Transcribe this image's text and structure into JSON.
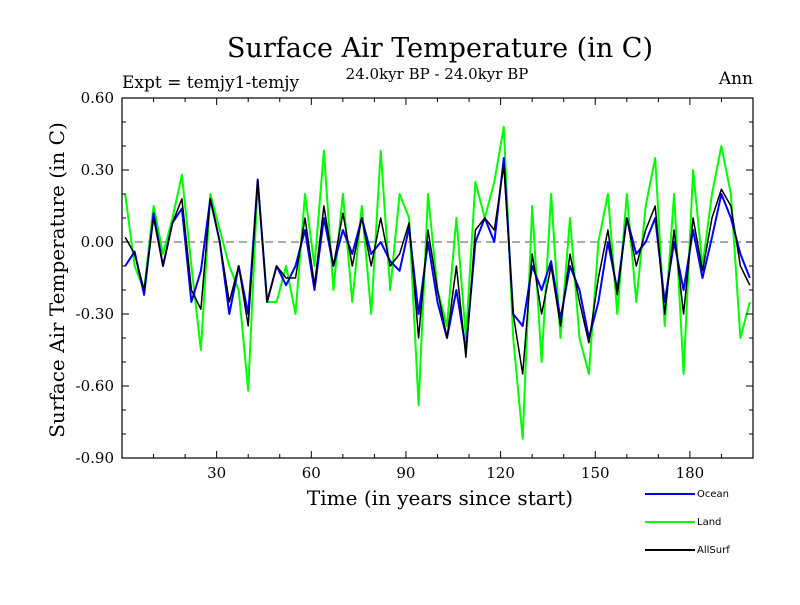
{
  "chart_data": {
    "type": "line",
    "title": "Surface Air Temperature (in C)",
    "subtitle": "24.0kyr BP - 24.0kyr BP",
    "left_label": "Expt = temjy1-temjy",
    "right_label": "Ann",
    "xlabel": "Time (in years since start)",
    "ylabel": "Surface Air Temperature (in C)",
    "xlim": [
      0,
      200
    ],
    "ylim": [
      -0.9,
      0.6
    ],
    "xticks": [
      30,
      60,
      90,
      120,
      150,
      180
    ],
    "xtick_labels": [
      "30",
      "60",
      "90",
      "120",
      "150",
      "180"
    ],
    "yticks": [
      0.6,
      0.3,
      0.0,
      -0.3,
      -0.6,
      -0.9
    ],
    "ytick_labels": [
      "0.60",
      "0.30",
      "0.00",
      "-0.30",
      "-0.60",
      "-0.90"
    ],
    "reference_line": 0.0,
    "legend_position": "bottom-right",
    "x": [
      1,
      4,
      7,
      10,
      13,
      16,
      19,
      22,
      25,
      28,
      31,
      34,
      37,
      40,
      43,
      46,
      49,
      52,
      55,
      58,
      61,
      64,
      67,
      70,
      73,
      76,
      79,
      82,
      85,
      88,
      91,
      94,
      97,
      100,
      103,
      106,
      109,
      112,
      115,
      118,
      121,
      124,
      127,
      130,
      133,
      136,
      139,
      142,
      145,
      148,
      151,
      154,
      157,
      160,
      163,
      166,
      169,
      172,
      175,
      178,
      181,
      184,
      187,
      190,
      193,
      196,
      199
    ],
    "series": [
      {
        "name": "Ocean",
        "color": "#0000ff",
        "values": [
          -0.1,
          -0.04,
          -0.22,
          0.12,
          -0.1,
          0.08,
          0.14,
          -0.25,
          -0.12,
          0.18,
          0.0,
          -0.3,
          -0.1,
          -0.3,
          0.26,
          -0.25,
          -0.1,
          -0.18,
          -0.1,
          0.05,
          -0.2,
          0.1,
          -0.1,
          0.05,
          -0.05,
          0.1,
          -0.05,
          0.0,
          -0.08,
          -0.12,
          0.06,
          -0.3,
          0.0,
          -0.25,
          -0.4,
          -0.2,
          -0.45,
          0.0,
          0.1,
          0.0,
          0.35,
          -0.3,
          -0.35,
          -0.1,
          -0.2,
          -0.08,
          -0.32,
          -0.1,
          -0.2,
          -0.4,
          -0.25,
          0.0,
          -0.2,
          0.1,
          -0.05,
          0.0,
          0.1,
          -0.25,
          0.0,
          -0.2,
          0.05,
          -0.15,
          0.02,
          0.2,
          0.1,
          -0.05,
          -0.15
        ]
      },
      {
        "name": "Land",
        "color": "#00ff00",
        "values": [
          0.2,
          -0.1,
          -0.2,
          0.15,
          -0.05,
          0.1,
          0.28,
          -0.1,
          -0.45,
          0.2,
          0.05,
          -0.1,
          -0.2,
          -0.62,
          0.25,
          -0.25,
          -0.25,
          -0.1,
          -0.3,
          0.2,
          -0.1,
          0.38,
          -0.2,
          0.2,
          -0.25,
          0.15,
          -0.3,
          0.38,
          -0.2,
          0.2,
          0.1,
          -0.68,
          0.2,
          -0.2,
          -0.35,
          0.1,
          -0.4,
          0.25,
          0.1,
          0.25,
          0.48,
          -0.4,
          -0.82,
          0.15,
          -0.5,
          0.2,
          -0.4,
          0.1,
          -0.4,
          -0.55,
          0.0,
          0.2,
          -0.3,
          0.2,
          -0.25,
          0.15,
          0.35,
          -0.35,
          0.2,
          -0.55,
          0.3,
          -0.1,
          0.2,
          0.4,
          0.2,
          -0.4,
          -0.25
        ]
      },
      {
        "name": "AllSurf",
        "color": "#000000",
        "values": [
          0.02,
          -0.05,
          -0.2,
          0.1,
          -0.1,
          0.08,
          0.18,
          -0.2,
          -0.28,
          0.18,
          0.0,
          -0.25,
          -0.1,
          -0.35,
          0.26,
          -0.25,
          -0.1,
          -0.15,
          -0.15,
          0.1,
          -0.18,
          0.15,
          -0.1,
          0.12,
          -0.1,
          0.1,
          -0.1,
          0.1,
          -0.1,
          -0.05,
          0.08,
          -0.4,
          0.05,
          -0.2,
          -0.4,
          -0.1,
          -0.48,
          0.05,
          0.1,
          0.05,
          0.32,
          -0.3,
          -0.55,
          -0.05,
          -0.3,
          -0.1,
          -0.35,
          -0.05,
          -0.25,
          -0.42,
          -0.15,
          0.05,
          -0.22,
          0.1,
          -0.1,
          0.05,
          0.15,
          -0.3,
          0.05,
          -0.3,
          0.1,
          -0.12,
          0.1,
          0.22,
          0.15,
          -0.1,
          -0.18
        ]
      }
    ]
  }
}
